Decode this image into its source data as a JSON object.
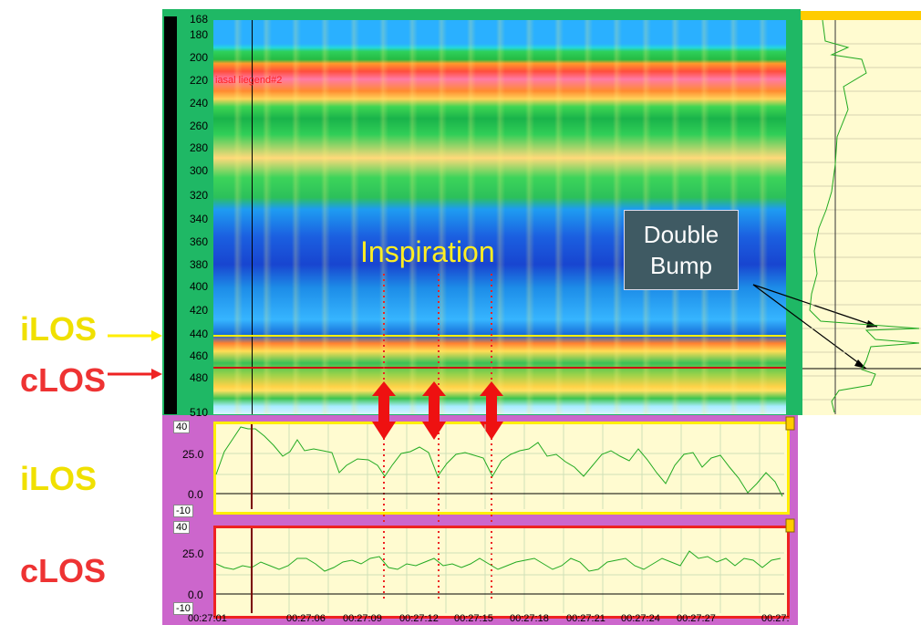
{
  "side_labels": {
    "ilos_top": "iLOS",
    "clos_top": "cLOS",
    "ilos_bottom": "iLOS",
    "clos_bottom": "cLOS"
  },
  "spectrogram": {
    "y_ticks": [
      "168",
      "180",
      "200",
      "220",
      "240",
      "260",
      "280",
      "300",
      "320",
      "340",
      "360",
      "380",
      "400",
      "420",
      "440",
      "460",
      "480",
      "510"
    ],
    "legend_text": "iasal liegend#2"
  },
  "annotations": {
    "inspiration": "Inspiration",
    "double_bump_line1": "Double",
    "double_bump_line2": "Bump"
  },
  "ilos_panel": {
    "max_box": "40",
    "min_box": "-10",
    "tick_25": "25.0",
    "tick_0": "0.0"
  },
  "clos_panel": {
    "max_box": "40",
    "min_box": "-10",
    "tick_25": "25.0",
    "tick_0": "0.0"
  },
  "time_axis": [
    "00:27:01",
    "00:27:06",
    "00:27:09",
    "00:27:12",
    "00:27:15",
    "00:27:18",
    "00:27:21",
    "00:27:24",
    "00:27:27",
    "00:27:"
  ],
  "colors": {
    "ilos": "#ffee00",
    "clos": "#ee2222",
    "trace": "#22aa22",
    "frame_green": "#1fb865",
    "frame_purple": "#cc66cc"
  }
}
